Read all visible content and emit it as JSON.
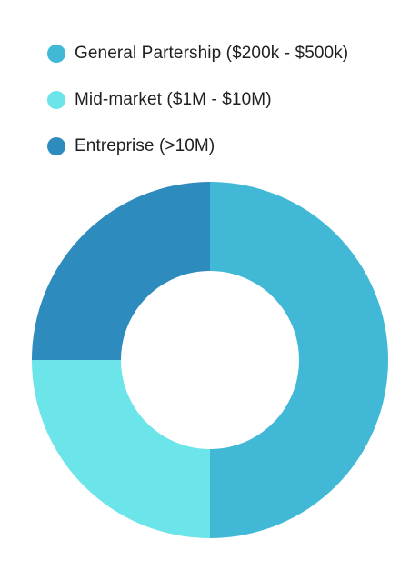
{
  "chart_data": {
    "type": "pie",
    "variant": "donut",
    "categories": [
      "General Partership ($200k - $500k)",
      "Mid-market ($1M - $10M)",
      "Entreprise (>10M)"
    ],
    "values": [
      50,
      25,
      25
    ],
    "colors": [
      "#42b8d7",
      "#6ce5ea",
      "#2e8bbd"
    ],
    "legend_position": "top-left",
    "start_angle_deg": 0,
    "direction": "clockwise"
  }
}
